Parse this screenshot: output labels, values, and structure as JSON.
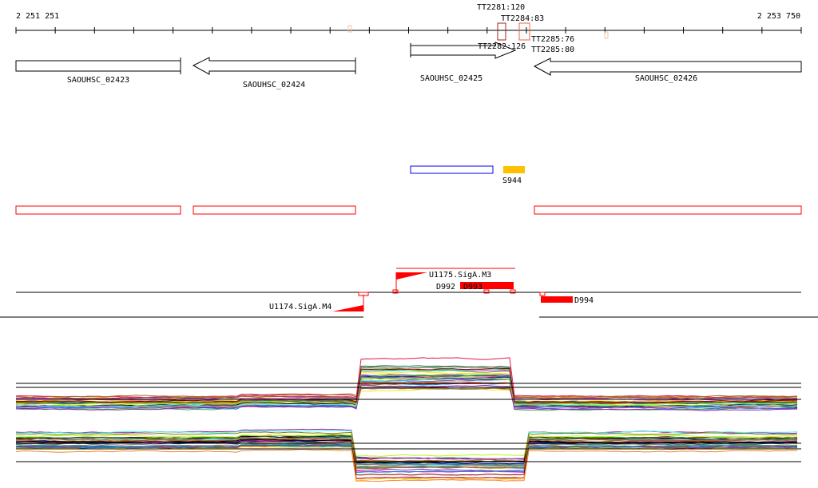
{
  "ruler": {
    "start_label": "2 251 251",
    "end_label": "2 253 750"
  },
  "markers": {
    "top_a": "TT2281:120",
    "top_b": "TT2284:83",
    "bottom_a": "TT2282:126",
    "bottom_b": "TT2285:76",
    "bottom_c": "TT2285:80"
  },
  "genes": [
    {
      "name": "SAOUHSC_02423",
      "strand": "+"
    },
    {
      "name": "SAOUHSC_02424",
      "strand": "-"
    },
    {
      "name": "SAOUHSC_02425",
      "strand": "+"
    },
    {
      "name": "SAOUHSC_02426",
      "strand": "-"
    }
  ],
  "features": {
    "s944": "S944"
  },
  "promoters": {
    "u1175": "U1175.SigA.M3",
    "u1174": "U1174.SigA.M4"
  },
  "deletions": {
    "d992": "D992",
    "d993": "D993",
    "d994": "D994"
  },
  "colors": {
    "red": "#ff0000",
    "orange": "#ffc000",
    "blue": "#0000ff"
  }
}
